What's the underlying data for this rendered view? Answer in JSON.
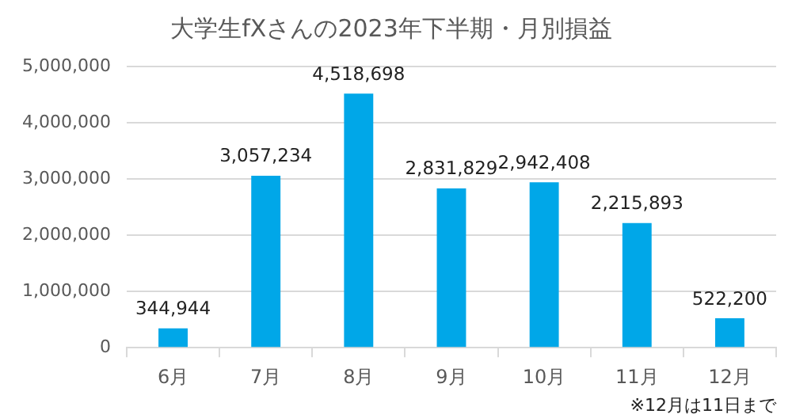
{
  "chart_data": {
    "type": "bar",
    "title": "大学生fXさんの2023年下半期・月別損益",
    "categories": [
      "6月",
      "7月",
      "8月",
      "9月",
      "10月",
      "11月",
      "12月"
    ],
    "values": [
      344944,
      3057234,
      4518698,
      2831829,
      2942408,
      2215893,
      522200
    ],
    "value_labels": [
      "344,944",
      "3,057,234",
      "4,518,698",
      "2,831,829",
      "2,942,408",
      "2,215,893",
      "522,200"
    ],
    "color": "#00a7e8",
    "ylim": [
      0,
      5000000
    ],
    "yticks": [
      {
        "value": 0,
        "label": "0"
      },
      {
        "value": 1000000,
        "label": "1,000,000"
      },
      {
        "value": 2000000,
        "label": "2,000,000"
      },
      {
        "value": 3000000,
        "label": "3,000,000"
      },
      {
        "value": 4000000,
        "label": "4,000,000"
      },
      {
        "value": 5000000,
        "label": "5,000,000"
      }
    ],
    "grid": "y",
    "annotations": [
      "※12月は11日まで"
    ]
  }
}
